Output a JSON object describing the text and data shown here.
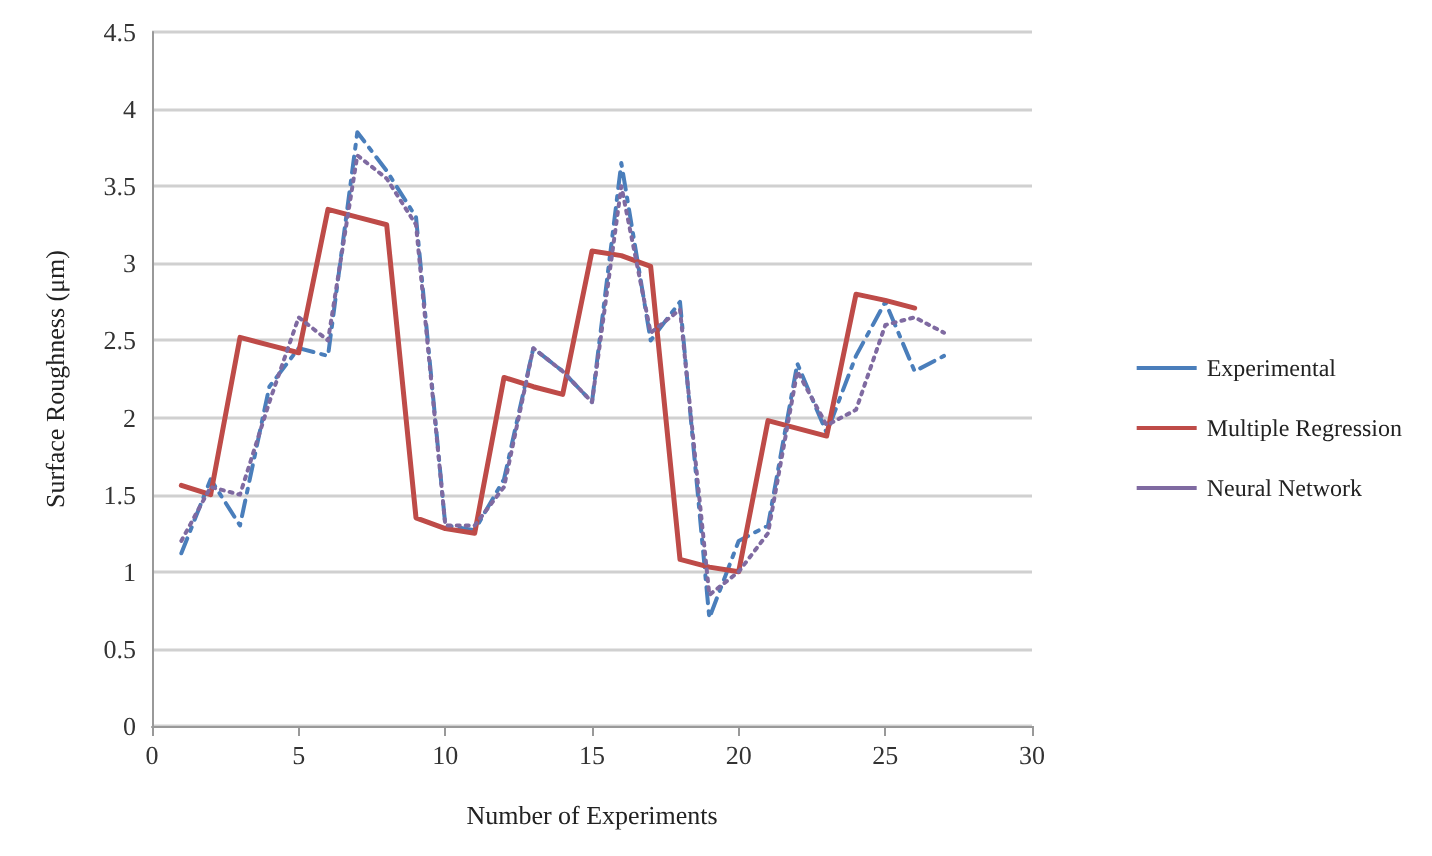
{
  "chart_data": {
    "type": "line",
    "xlabel": "Number of Experiments",
    "ylabel": "Surface Roughness (μm)",
    "x": [
      1,
      2,
      3,
      4,
      5,
      6,
      7,
      8,
      9,
      10,
      11,
      12,
      13,
      14,
      15,
      16,
      17,
      18,
      19,
      20,
      21,
      22,
      23,
      24,
      25,
      26,
      27
    ],
    "xlim": [
      0,
      30
    ],
    "xticks": [
      0,
      5,
      10,
      15,
      20,
      25,
      30
    ],
    "ylim": [
      0,
      4.5
    ],
    "yticks": [
      0,
      0.5,
      1,
      1.5,
      2,
      2.5,
      3,
      3.5,
      4,
      4.5
    ],
    "grid": "y",
    "legend": "right",
    "marker": "none",
    "series": [
      {
        "name": "Experimental",
        "color": "#4a7ebb",
        "line_style": "dashed",
        "values": [
          1.12,
          1.6,
          1.3,
          2.2,
          2.45,
          2.4,
          3.85,
          3.6,
          3.3,
          1.3,
          1.27,
          1.6,
          2.45,
          2.3,
          2.1,
          3.65,
          2.5,
          2.75,
          0.7,
          1.2,
          1.3,
          2.35,
          1.9,
          2.4,
          2.75,
          2.3,
          2.4
        ]
      },
      {
        "name": "Multiple Regression",
        "color": "#be4b48",
        "line_style": "solid",
        "values": [
          1.56,
          1.5,
          2.52,
          2.47,
          2.42,
          3.35,
          3.3,
          3.25,
          1.35,
          1.28,
          1.25,
          2.26,
          2.2,
          2.15,
          3.08,
          3.05,
          2.98,
          1.08,
          1.03,
          1.0,
          1.98,
          1.93,
          1.88,
          2.8,
          2.76,
          2.71,
          null
        ]
      },
      {
        "name": "Neural Network",
        "color": "#7f6aa1",
        "line_style": "dotted",
        "values": [
          1.2,
          1.55,
          1.5,
          2.1,
          2.65,
          2.5,
          3.7,
          3.55,
          3.25,
          1.3,
          1.3,
          1.55,
          2.45,
          2.3,
          2.1,
          3.5,
          2.55,
          2.7,
          0.85,
          1.0,
          1.25,
          2.3,
          1.95,
          2.05,
          2.6,
          2.65,
          2.55
        ]
      }
    ]
  }
}
